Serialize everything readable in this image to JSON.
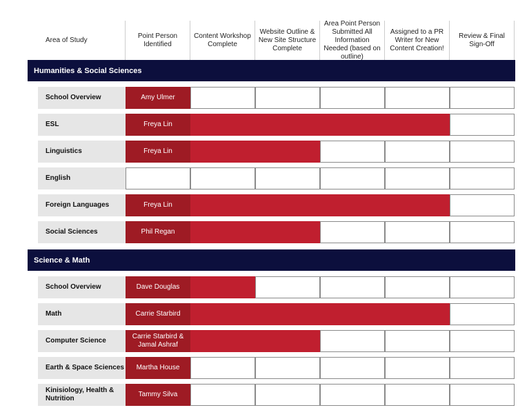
{
  "headers": [
    "Area of Study",
    "Point Person Identified",
    "Content Workshop Complete",
    "Website Outline & New Site Structure Complete",
    "Area Point Person Submitted All Information Needed (based on outline)",
    "Assigned to a PR Writer for New Content Creation!",
    "Review & Final Sign-Off"
  ],
  "sections": [
    {
      "title": "Humanities & Social Sciences",
      "rows": [
        {
          "area": "School Overview",
          "person": "Amy Ulmer",
          "progress": 1
        },
        {
          "area": "ESL",
          "person": "Freya Lin",
          "progress": 5
        },
        {
          "area": "Linguistics",
          "person": "Freya Lin",
          "progress": 3
        },
        {
          "area": "English",
          "person": null,
          "progress": 0
        },
        {
          "area": "Foreign Languages",
          "person": "Freya Lin",
          "progress": 5
        },
        {
          "area": "Social Sciences",
          "person": "Phil Regan",
          "progress": 3
        }
      ]
    },
    {
      "title": "Science & Math",
      "rows": [
        {
          "area": "School Overview",
          "person": "Dave Douglas",
          "progress": 2
        },
        {
          "area": "Math",
          "person": "Carrie Starbird",
          "progress": 5
        },
        {
          "area": "Computer Science",
          "person": "Carrie Starbird & Jamal Ashraf",
          "progress": 3
        },
        {
          "area": "Earth & Space Sciences",
          "person": "Martha House",
          "progress": 1
        },
        {
          "area": "Kinisiology, Health & Nutrition",
          "person": "Tammy Silva",
          "progress": 1
        }
      ]
    }
  ]
}
